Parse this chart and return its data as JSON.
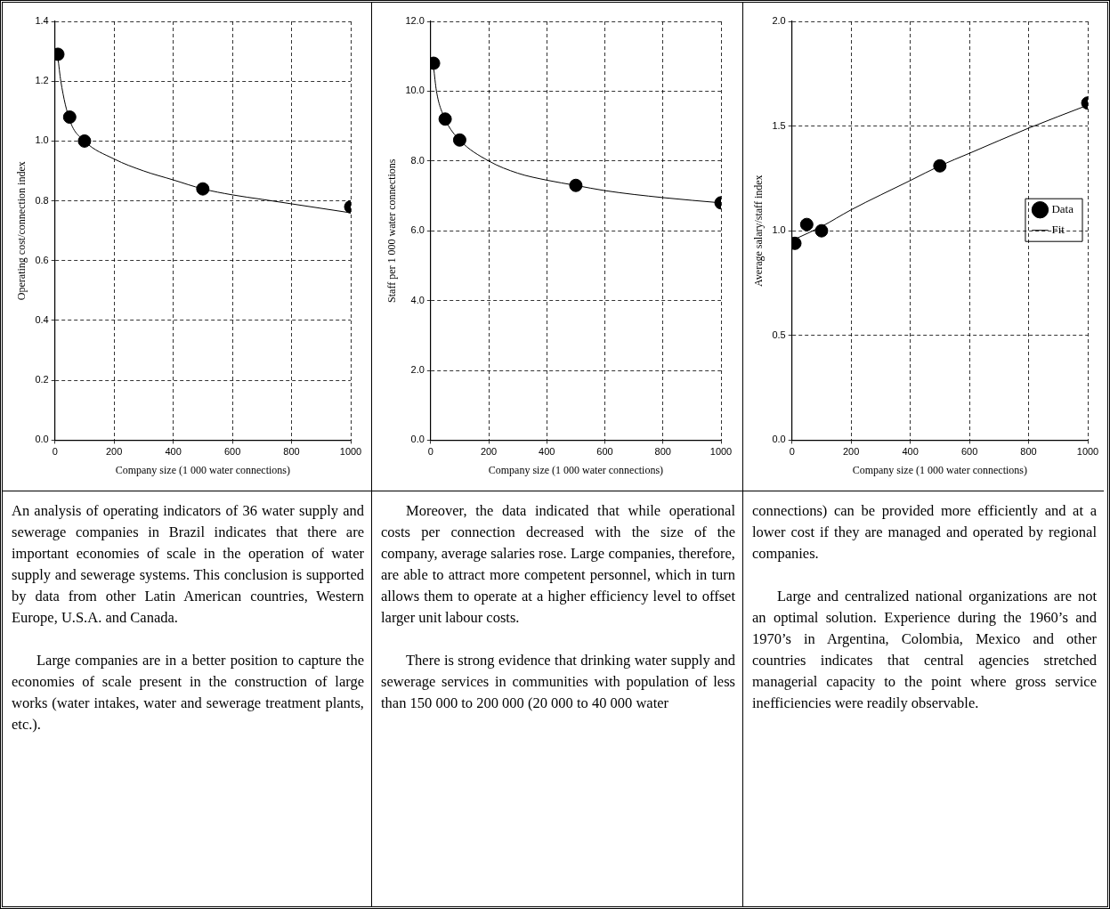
{
  "chart_data": [
    {
      "type": "scatter",
      "xlabel": "Company size (1 000 water connections)",
      "ylabel": "Operating cost/connection index",
      "xlim": [
        0,
        1000
      ],
      "xticks": [
        0,
        200,
        400,
        600,
        800,
        1000
      ],
      "ylim": [
        0,
        1.4
      ],
      "yticks": [
        {
          "value": 0,
          "label": "0.0"
        },
        0.2,
        0.4,
        0.6,
        0.8,
        {
          "value": 1,
          "label": "1.0"
        },
        1.2,
        1.4
      ],
      "grid": true,
      "series": [
        {
          "color": "#000000",
          "marker": "circle",
          "x": [
            10,
            50,
            100,
            500,
            1000
          ],
          "values": [
            1.29,
            1.08,
            1.0,
            0.84,
            0.78
          ]
        },
        {
          "type": "line",
          "color": "#000000",
          "x": [
            10,
            20,
            50,
            100,
            200,
            300,
            400,
            500,
            600,
            700,
            800,
            1000
          ],
          "values": [
            1.28,
            1.2,
            1.07,
            1.0,
            0.94,
            0.9,
            0.87,
            0.84,
            0.82,
            0.805,
            0.79,
            0.76
          ]
        }
      ],
      "annotations": [
        "An analysis of operating indicators of 36 water supply and sewerage companies in Brazil indicates that there are important economies of scale in the operation of water supply and sewerage systems. This conclusion is supported by data from other Latin American countries, Western Europe, U.S.A. and Canada.",
        "Large companies are in a better position to capture the economies of scale present in the construction of large works (water intakes, water and sewerage treatment plants, etc.)."
      ]
    },
    {
      "type": "scatter",
      "xlabel": "Company size (1 000 water connections)",
      "ylabel": "Staff per 1 000 water connections",
      "xlim": [
        0,
        1000
      ],
      "xticks": [
        0,
        200,
        400,
        600,
        800,
        1000
      ],
      "ylim": [
        0,
        12
      ],
      "yticks": [
        {
          "value": 0,
          "label": "0.0"
        },
        {
          "value": 2,
          "label": "2.0"
        },
        {
          "value": 4,
          "label": "4.0"
        },
        {
          "value": 6,
          "label": "6.0"
        },
        {
          "value": 8,
          "label": "8.0"
        },
        {
          "value": 10,
          "label": "10.0"
        },
        {
          "value": 12,
          "label": "12.0"
        }
      ],
      "grid": true,
      "series": [
        {
          "color": "#000000",
          "marker": "circle",
          "x": [
            10,
            50,
            100,
            500,
            1000
          ],
          "values": [
            10.8,
            9.2,
            8.6,
            7.3,
            6.8
          ]
        },
        {
          "type": "line",
          "color": "#000000",
          "x": [
            10,
            20,
            50,
            100,
            200,
            300,
            400,
            500,
            600,
            800,
            1000
          ],
          "values": [
            10.7,
            10.0,
            9.2,
            8.6,
            8.0,
            7.65,
            7.45,
            7.3,
            7.15,
            6.95,
            6.8
          ]
        }
      ],
      "annotations": [
        "Moreover, the data indicated that while operational costs per connection decreased with the size of the company, average salaries rose. Large companies, therefore, are able to attract more competent personnel, which in turn allows them to operate at a higher efficiency level to offset larger unit labour costs.",
        "There is strong evidence that drinking water supply and sewerage services in communities with population of less than 150 000 to 200 000 (20 000 to 40 000 water"
      ]
    },
    {
      "type": "scatter",
      "xlabel": "Company size (1 000 water connections)",
      "ylabel": "Average salary/staff index",
      "xlim": [
        0,
        1000
      ],
      "xticks": [
        0,
        200,
        400,
        600,
        800,
        1000
      ],
      "ylim": [
        0,
        2
      ],
      "yticks": [
        {
          "value": 0,
          "label": "0.0"
        },
        0.5,
        {
          "value": 1,
          "label": "1.0"
        },
        1.5,
        {
          "value": 2,
          "label": "2.0"
        }
      ],
      "grid": true,
      "legend": "right",
      "series": [
        {
          "name": "Data",
          "color": "#000000",
          "marker": "circle",
          "x": [
            10,
            50,
            100,
            500,
            1000
          ],
          "values": [
            0.94,
            1.03,
            1.0,
            1.31,
            1.61
          ]
        },
        {
          "type": "line",
          "name": "Fit",
          "color": "#000000",
          "x": [
            10,
            100,
            200,
            400,
            500,
            600,
            800,
            1000
          ],
          "values": [
            0.96,
            1.02,
            1.1,
            1.24,
            1.31,
            1.37,
            1.49,
            1.6
          ]
        }
      ],
      "annotations": [
        "connections) can be provided more efficiently and at a lower cost if they are managed and operated by regional companies.",
        "Large and centralized national organizations are not an optimal solution. Experience during the 1960’s and 1970’s in Argentina, Colombia, Mexico and other countries indicates that central agencies stretched managerial capacity to the point where gross service inefficiencies were readily observable."
      ]
    }
  ]
}
